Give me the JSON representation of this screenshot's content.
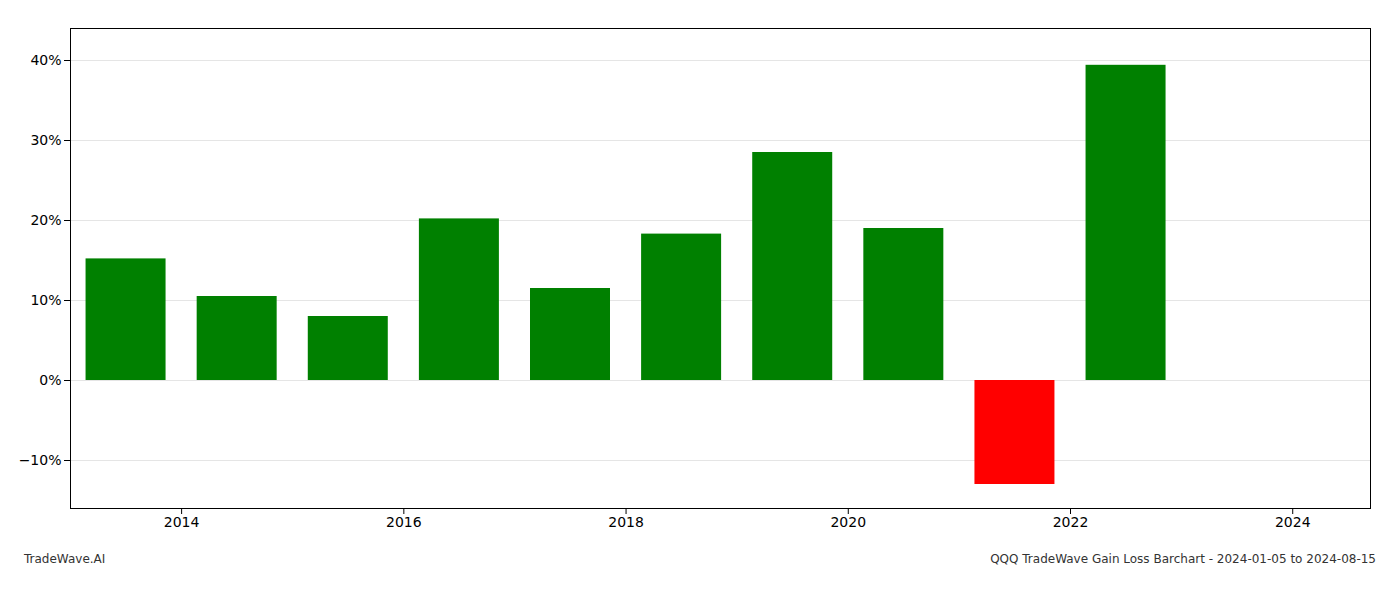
{
  "chart_data": {
    "type": "bar",
    "x": [
      2013.5,
      2014.5,
      2015.5,
      2016.5,
      2017.5,
      2018.5,
      2019.5,
      2020.5,
      2021.5,
      2022.5
    ],
    "values": [
      15.2,
      10.5,
      8.0,
      20.2,
      11.5,
      18.3,
      28.5,
      19.0,
      -13.0,
      39.4
    ],
    "colors": [
      "#008000",
      "#008000",
      "#008000",
      "#008000",
      "#008000",
      "#008000",
      "#008000",
      "#008000",
      "#ff0000",
      "#008000"
    ],
    "xlim": [
      2013.0,
      2024.7
    ],
    "xticks": [
      2014,
      2016,
      2018,
      2020,
      2022,
      2024
    ],
    "ylim": [
      -16,
      44
    ],
    "yticks": [
      {
        "value": -10,
        "label": "−10%"
      },
      {
        "value": 0,
        "label": "0%"
      },
      {
        "value": 10,
        "label": "10%"
      },
      {
        "value": 20,
        "label": "20%"
      },
      {
        "value": 30,
        "label": "30%"
      },
      {
        "value": 40,
        "label": "40%"
      }
    ],
    "grid": true,
    "annotations": [
      "TradeWave.AI",
      "QQQ TradeWave Gain Loss Barchart - 2024-01-05 to 2024-08-15"
    ]
  }
}
